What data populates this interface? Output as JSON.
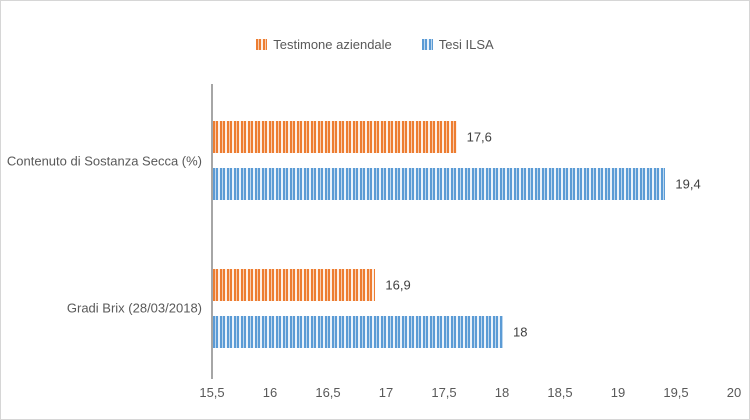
{
  "chart_data": {
    "type": "bar",
    "orientation": "horizontal",
    "title": "",
    "categories": [
      "Contenuto di Sostanza Secca (%)",
      "Gradi Brix (28/03/2018)"
    ],
    "series": [
      {
        "name": "Testimone aziendale",
        "color": "#ED7D31",
        "color_light": "#F8CBAD",
        "color_lighter": "#FDEFE6",
        "values": [
          17.6,
          16.9
        ],
        "value_labels": [
          "17,6",
          "16,9"
        ]
      },
      {
        "name": "Tesi ILSA",
        "color": "#5B9BD5",
        "color_light": "#BDD7EE",
        "color_lighter": "#EAF2FA",
        "values": [
          19.4,
          18
        ],
        "value_labels": [
          "19,4",
          "18"
        ]
      }
    ],
    "xlim": [
      15.5,
      20
    ],
    "xticks": [
      15.5,
      16,
      16.5,
      17,
      17.5,
      18,
      18.5,
      19,
      19.5,
      20
    ],
    "xtick_labels": [
      "15,5",
      "16",
      "16,5",
      "17",
      "17,5",
      "18",
      "18,5",
      "19",
      "19,5",
      "20"
    ],
    "legend_position": "top",
    "grid": false,
    "pattern_fill": "vertical-stripes",
    "axis_line_color": "#A6A6A6",
    "text_color": "#595959",
    "label_color": "#404040"
  }
}
